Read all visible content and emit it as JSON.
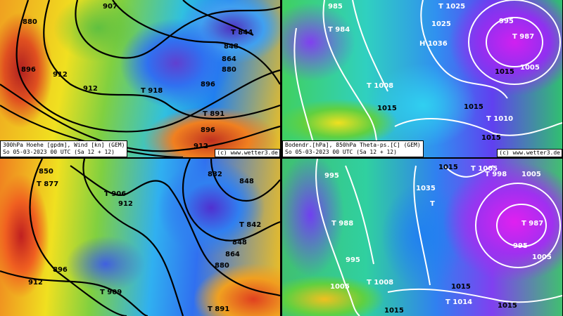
{
  "panels": [
    {
      "id": "geopotential-300hpa-12h",
      "caption_line1": "300hPa Hoehe [gpdm], Wind [kn] (GEM)",
      "caption_line2": "So 05-03-2023 00 UTC (Sa 12 + 12)",
      "copyright": "(c) www.wetter3.de",
      "labels": [
        "880",
        "896",
        "912",
        "912",
        "907",
        "T 844",
        "848",
        "864",
        "880",
        "896",
        "T 918",
        "T 891",
        "896",
        "912"
      ]
    },
    {
      "id": "surface-pressure-12h",
      "caption_line1": "Bodendr.[hPa], 850hPa Theta-ps.[C] (GEM)",
      "caption_line2": "So 05-03-2023 00 UTC (Sa 12 + 12)",
      "copyright": "(c) www.wetter3.de",
      "labels": [
        "985",
        "T 984",
        "1025",
        "H 1036",
        "T 1025",
        "995",
        "T 987",
        "1005",
        "1015",
        "T 1008",
        "1015",
        "1015",
        "T 1010",
        "1015",
        "1015"
      ]
    },
    {
      "id": "geopotential-300hpa-next",
      "labels": [
        "850",
        "T 877",
        "T 906",
        "912",
        "832",
        "848",
        "T 842",
        "848",
        "864",
        "880",
        "896",
        "912",
        "T 909",
        "T 891"
      ]
    },
    {
      "id": "surface-pressure-next",
      "labels": [
        "995",
        "T 988",
        "1035",
        "T",
        "1015",
        "T 1005",
        "T 998",
        "1005",
        "T 987",
        "995",
        "1005",
        "995",
        "1005",
        "T 1008",
        "1015",
        "1015",
        "T 1014",
        "1015"
      ]
    }
  ],
  "colors": {
    "frame": "#000000",
    "contour_geopotential": "#000000",
    "contour_pressure": "#ffffff"
  }
}
